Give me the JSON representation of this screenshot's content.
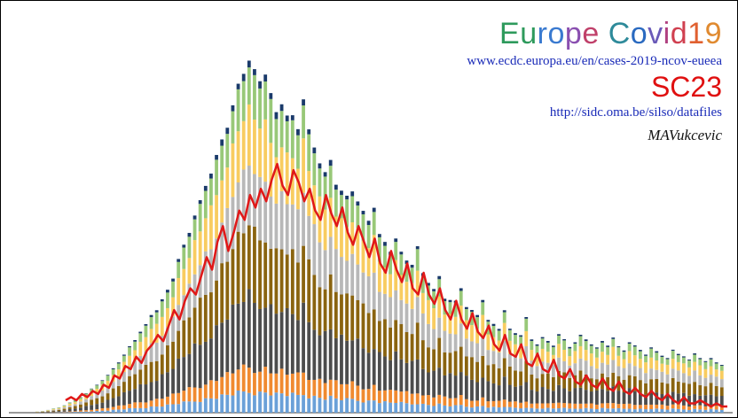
{
  "header": {
    "title_chars": [
      {
        "ch": "E",
        "color": "#2e9a5c"
      },
      {
        "ch": "u",
        "color": "#2e9a5c"
      },
      {
        "ch": "r",
        "color": "#3a7ad0"
      },
      {
        "ch": "o",
        "color": "#3a7ad0"
      },
      {
        "ch": "p",
        "color": "#8a4fb0"
      },
      {
        "ch": "e",
        "color": "#c0406a"
      },
      {
        "ch": " ",
        "color": "#000000"
      },
      {
        "ch": "C",
        "color": "#2e8a9a"
      },
      {
        "ch": "o",
        "color": "#2a6ac0"
      },
      {
        "ch": "v",
        "color": "#6a5ab8"
      },
      {
        "ch": "i",
        "color": "#b04080"
      },
      {
        "ch": "d",
        "color": "#d04050"
      },
      {
        "ch": "1",
        "color": "#e06030"
      },
      {
        "ch": "9",
        "color": "#e08a30"
      }
    ],
    "source_url": "www.ecdc.europa.eu/en/cases-2019-ncov-eueea",
    "overlay_label": "SC23",
    "overlay_url": "http://sidc.oma.be/silso/datafiles",
    "author": "MAVukcevic"
  },
  "chart_data": {
    "type": "bar",
    "stacked": true,
    "grid": false,
    "legend": "none",
    "segment_colors": [
      "#6aa0d8",
      "#f08a30",
      "#4c4c4c",
      "#8a6410",
      "#b8b8b8",
      "#f8cc60",
      "#98c878",
      "#1a3a6a"
    ],
    "bar_totals": [
      0.3,
      0.5,
      0.8,
      1.2,
      1.5,
      2.2,
      3.0,
      3.5,
      4.5,
      5.5,
      6.8,
      8.0,
      9.5,
      11,
      13,
      15,
      17,
      19,
      21,
      23,
      25,
      28,
      30,
      33,
      36,
      40,
      45,
      48,
      52,
      56,
      60,
      65,
      70,
      75,
      80,
      85,
      90,
      94,
      98,
      100,
      97,
      95,
      99,
      93,
      88,
      92,
      87,
      85,
      82,
      89,
      80,
      76,
      73,
      70,
      74,
      68,
      65,
      62,
      64,
      60,
      57,
      55,
      60,
      52,
      50,
      48,
      51,
      46,
      44,
      42,
      47,
      40,
      38,
      36,
      40,
      34,
      33,
      32,
      36,
      30,
      29,
      28,
      33,
      27,
      26,
      25,
      30,
      24,
      23,
      22,
      27,
      21,
      20,
      22,
      21,
      20,
      23,
      21,
      19,
      20,
      22,
      21,
      20,
      19,
      21,
      20,
      22,
      19,
      18,
      20,
      19,
      18,
      17,
      19,
      18,
      17,
      16,
      18,
      17,
      16,
      15,
      17,
      16,
      15,
      16,
      15,
      14
    ],
    "overlay_line": {
      "name": "SC23",
      "color": "#e01818",
      "values": [
        4,
        5,
        4,
        6,
        5,
        7,
        6,
        9,
        8,
        12,
        11,
        15,
        14,
        18,
        16,
        20,
        22,
        25,
        23,
        28,
        33,
        30,
        36,
        40,
        38,
        44,
        50,
        46,
        55,
        60,
        52,
        58,
        65,
        62,
        70,
        66,
        72,
        68,
        75,
        80,
        73,
        70,
        78,
        74,
        68,
        72,
        65,
        62,
        70,
        64,
        60,
        66,
        58,
        54,
        60,
        55,
        50,
        56,
        48,
        45,
        52,
        46,
        42,
        48,
        40,
        38,
        45,
        38,
        35,
        40,
        33,
        30,
        36,
        30,
        27,
        32,
        26,
        24,
        28,
        22,
        20,
        25,
        19,
        18,
        22,
        16,
        15,
        19,
        14,
        13,
        17,
        12,
        11,
        14,
        10,
        9,
        12,
        9,
        8,
        11,
        8,
        7,
        10,
        7,
        6,
        8,
        6,
        5,
        7,
        5,
        4,
        6,
        4,
        3,
        5,
        3,
        3,
        4,
        3,
        2,
        3,
        2,
        2
      ]
    }
  }
}
